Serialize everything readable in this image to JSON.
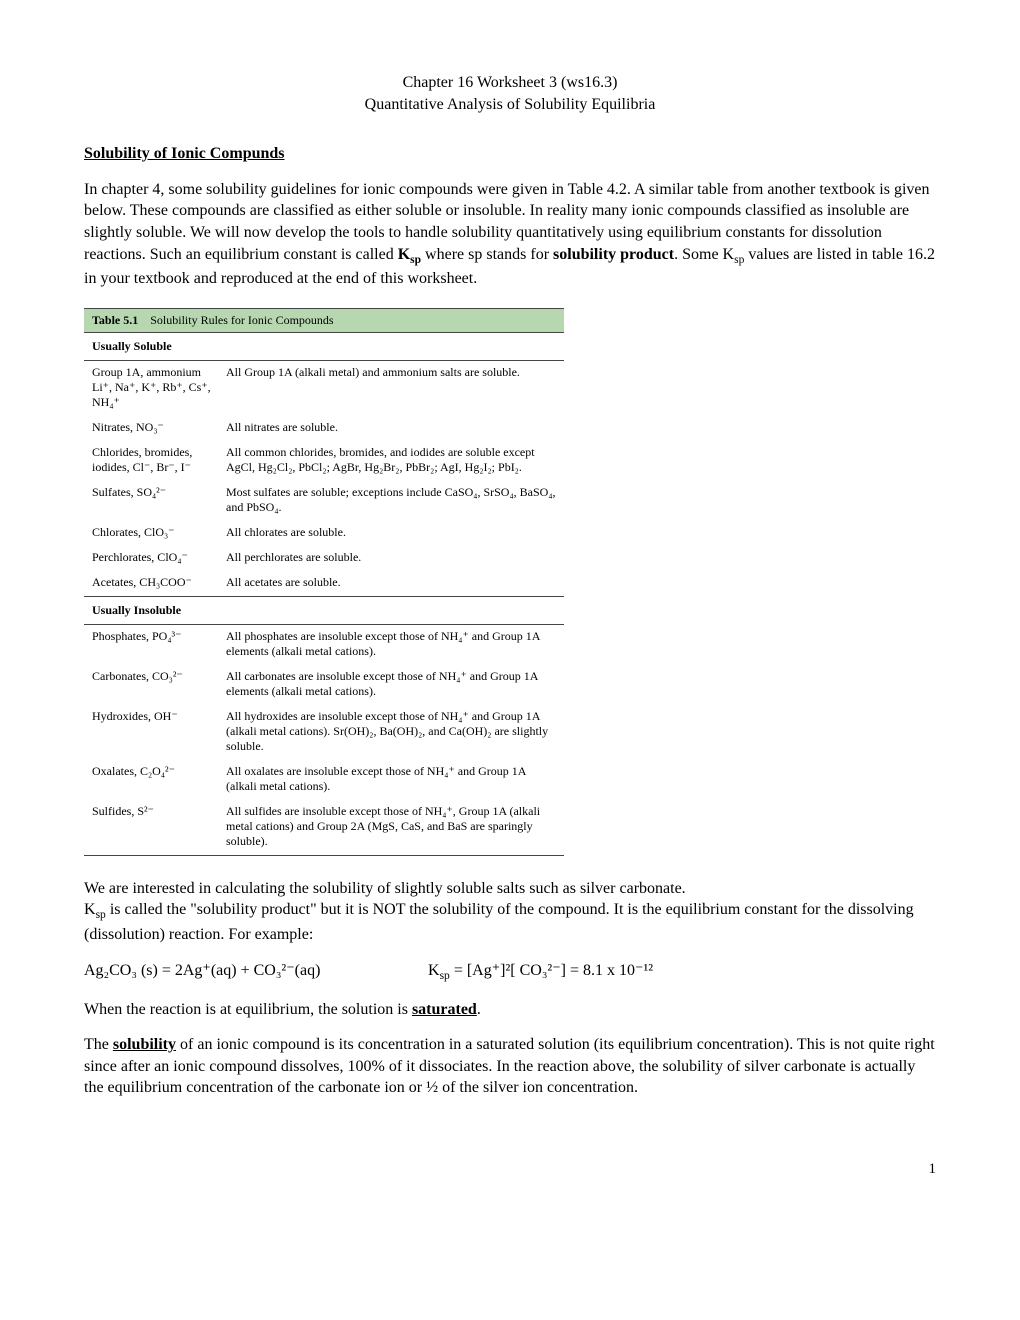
{
  "header": {
    "line1": "Chapter 16 Worksheet 3 (ws16.3)",
    "line2": "Quantitative Analysis of Solubility Equilibria"
  },
  "section1_title": "Solubility of Ionic Compunds",
  "para1_a": "In chapter 4, some solubility guidelines for ionic compounds were given in Table 4.2.  A similar table from another textbook is given below.  These compounds are classified as either soluble or insoluble.  In reality many ionic compounds classified as insoluble are slightly soluble.  We will now develop the tools to handle solubility quantitatively using equilibrium constants for dissolution reactions.  Such an equilibrium constant is called ",
  "para1_ksp": "K",
  "para1_b": " where sp stands for ",
  "para1_bold": "solubility product",
  "para1_c": ".  Some K",
  "para1_d": " values are listed in table 16.2 in your textbook and reproduced at the end of this worksheet.",
  "table": {
    "title_num": "Table 5.1",
    "title_text": "Solubility Rules for Ionic Compounds",
    "soluble_head": "Usually Soluble",
    "insoluble_head": "Usually Insoluble",
    "soluble": [
      {
        "cat": "Group 1A, ammonium Li⁺, Na⁺, K⁺, Rb⁺, Cs⁺, NH₄⁺",
        "desc": "All Group 1A (alkali metal) and ammonium salts are soluble."
      },
      {
        "cat": "Nitrates, NO₃⁻",
        "desc": "All nitrates are soluble."
      },
      {
        "cat": "Chlorides, bromides, iodides, Cl⁻, Br⁻, I⁻",
        "desc": "All common chlorides, bromides, and iodides are soluble except AgCl, Hg₂Cl₂, PbCl₂; AgBr, Hg₂Br₂, PbBr₂; AgI, Hg₂I₂; PbI₂."
      },
      {
        "cat": "Sulfates, SO₄²⁻",
        "desc": "Most sulfates are soluble; exceptions include CaSO₄, SrSO₄, BaSO₄, and PbSO₄."
      },
      {
        "cat": "Chlorates, ClO₃⁻",
        "desc": "All chlorates are soluble."
      },
      {
        "cat": "Perchlorates, ClO₄⁻",
        "desc": "All perchlorates are soluble."
      },
      {
        "cat": "Acetates, CH₃COO⁻",
        "desc": "All acetates are soluble."
      }
    ],
    "insoluble": [
      {
        "cat": "Phosphates, PO₄³⁻",
        "desc": "All phosphates are insoluble except those of NH₄⁺ and Group 1A elements (alkali metal cations)."
      },
      {
        "cat": "Carbonates, CO₃²⁻",
        "desc": "All carbonates are insoluble except those of NH₄⁺ and Group 1A elements (alkali metal cations)."
      },
      {
        "cat": "Hydroxides, OH⁻",
        "desc": "All hydroxides are insoluble except those of NH₄⁺ and Group 1A (alkali metal cations). Sr(OH)₂, Ba(OH)₂, and Ca(OH)₂ are slightly soluble."
      },
      {
        "cat": "Oxalates, C₂O₄²⁻",
        "desc": "All oxalates are insoluble except those of NH₄⁺ and Group 1A (alkali metal cations)."
      },
      {
        "cat": "Sulfides, S²⁻",
        "desc": "All sulfides are insoluble except those of NH₄⁺, Group 1A (alkali metal cations) and Group 2A (MgS, CaS, and BaS are sparingly soluble)."
      }
    ]
  },
  "para2_a": "We are interested in calculating the solubility of slightly soluble salts such as silver carbonate.",
  "para2_b": " is called the \"solubility product\" but it is NOT the solubility of the compound.  It is the equilibrium constant for the dissolving (dissolution) reaction.  For example:",
  "eq_lhs": "Ag₂CO₃ (s) = 2Ag⁺(aq) + CO₃²⁻(aq)",
  "eq_rhs": "K",
  "eq_rhs2": " = [Ag⁺]²[ CO₃²⁻] = 8.1 x 10⁻¹²",
  "para3_a": "When the reaction is at equilibrium, the solution is ",
  "para3_b": "saturated",
  "para3_c": ".",
  "para4_a": "The ",
  "para4_b": "solubility",
  "para4_c": " of an ionic compound is its concentration in a saturated solution (its equilibrium concentration).  This is not quite right since after an ionic compound dissolves, 100% of it dissociates.  In the reaction above, the solubility of silver carbonate is actually the equilibrium concentration of the carbonate ion or ½ of the silver ion concentration.",
  "pagenum": "1"
}
